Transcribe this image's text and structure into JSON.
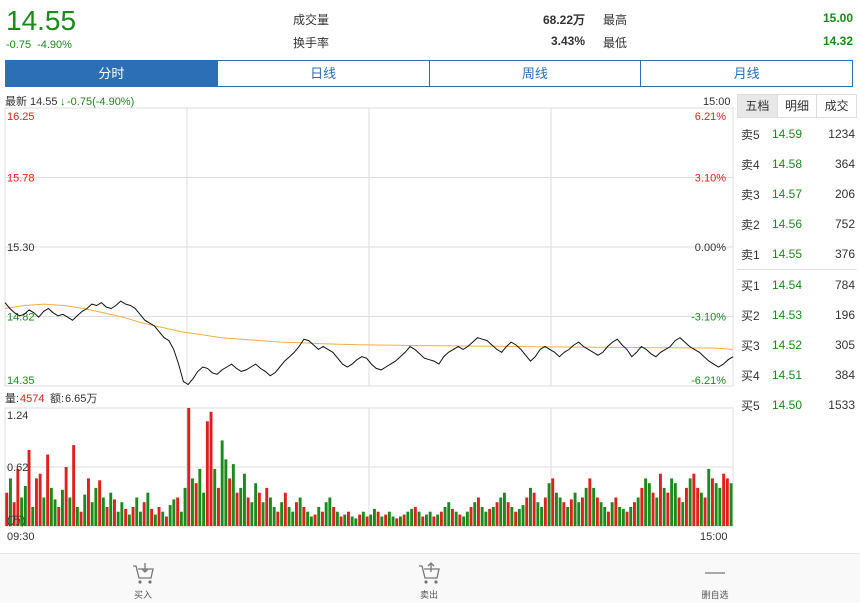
{
  "quote": {
    "price": "14.55",
    "change": "-0.75",
    "change_pct": "-4.90%",
    "volume_label": "成交量",
    "volume_value": "68.22万",
    "turnover_label": "换手率",
    "turnover_value": "3.43%",
    "high_label": "最高",
    "high_value": "15.00",
    "low_label": "最低",
    "low_value": "14.32"
  },
  "tabs": [
    "分时",
    "日线",
    "周线",
    "月线"
  ],
  "active_tab": 0,
  "chart_info": {
    "latest_label": "最新",
    "latest_value": "14.55",
    "latest_change": "-0.75(-4.90%)",
    "arrow": "↓",
    "time_end_top": "15:00",
    "volume_label": "量:",
    "volume_value": "4574",
    "amount_label": "额:",
    "amount_value": "6.65万",
    "time_start": "09:30",
    "time_end": "15:00"
  },
  "chart_data": {
    "type": "line",
    "price_axis": [
      "16.25",
      "15.78",
      "15.30",
      "14.82",
      "14.35"
    ],
    "pct_axis": [
      "6.21%",
      "3.10%",
      "0.00%",
      "-3.10%",
      "-6.21%"
    ],
    "ylim": [
      14.35,
      16.25
    ],
    "prev_close": 15.3,
    "price_series": [
      14.92,
      14.88,
      14.85,
      14.83,
      14.84,
      14.87,
      14.85,
      14.82,
      14.86,
      14.88,
      14.85,
      14.83,
      14.84,
      14.82,
      14.8,
      14.83,
      14.86,
      14.88,
      14.91,
      14.9,
      14.92,
      14.89,
      14.88,
      14.9,
      14.93,
      14.91,
      14.9,
      14.88,
      14.84,
      14.8,
      14.78,
      14.76,
      14.72,
      14.68,
      14.66,
      14.6,
      14.5,
      14.38,
      14.36,
      14.4,
      14.45,
      14.48,
      14.47,
      14.44,
      14.43,
      14.46,
      14.48,
      14.5,
      14.47,
      14.45,
      14.46,
      14.48,
      14.5,
      14.47,
      14.45,
      14.42,
      14.44,
      14.48,
      14.52,
      14.55,
      14.58,
      14.62,
      14.67,
      14.66,
      14.63,
      14.6,
      14.62,
      14.6,
      14.58,
      14.54,
      14.5,
      14.48,
      14.5,
      14.53,
      14.55,
      14.54,
      14.5,
      14.47,
      14.46,
      14.48,
      14.5,
      14.52,
      14.55,
      14.58,
      14.62,
      14.6,
      14.57,
      14.54,
      14.53,
      14.52,
      14.5,
      14.55,
      14.58,
      14.6,
      14.62,
      14.6,
      14.62,
      14.65,
      14.68,
      14.67,
      14.66,
      14.63,
      14.6,
      14.58,
      14.62,
      14.65,
      14.63,
      14.6,
      14.56,
      14.52,
      14.55,
      14.6,
      14.62,
      14.6,
      14.58,
      14.55,
      14.58,
      14.6,
      14.63,
      14.65,
      14.62,
      14.6,
      14.58,
      14.56,
      14.58,
      14.62,
      14.65,
      14.67,
      14.63,
      14.6,
      14.55,
      14.58,
      14.62,
      14.6,
      14.57,
      14.55,
      14.58,
      14.6,
      14.62,
      14.66,
      14.68,
      14.65,
      14.62,
      14.6,
      14.58,
      14.55,
      14.52,
      14.5,
      14.48,
      14.5,
      14.53,
      14.55
    ],
    "avg_series": [
      14.88,
      14.9,
      14.91,
      14.9,
      14.88,
      14.85,
      14.82,
      14.78,
      14.75,
      14.72,
      14.7,
      14.68,
      14.67,
      14.66,
      14.65,
      14.645,
      14.64,
      14.636,
      14.632,
      14.63,
      14.628,
      14.626,
      14.625,
      14.624,
      14.623,
      14.622,
      14.62,
      14.618,
      14.617,
      14.616,
      14.615,
      14.614,
      14.613,
      14.612,
      14.611,
      14.61,
      14.61,
      14.6
    ],
    "volume_axis": [
      "1.24",
      "0.62",
      "(万)"
    ],
    "volume_max": 1.24,
    "volume_series": [
      0.35,
      0.5,
      0.25,
      0.6,
      0.3,
      0.42,
      0.8,
      0.2,
      0.5,
      0.55,
      0.3,
      0.75,
      0.4,
      0.28,
      0.2,
      0.38,
      0.62,
      0.3,
      0.85,
      0.2,
      0.15,
      0.33,
      0.5,
      0.25,
      0.4,
      0.48,
      0.3,
      0.2,
      0.35,
      0.28,
      0.15,
      0.25,
      0.18,
      0.12,
      0.2,
      0.3,
      0.15,
      0.25,
      0.35,
      0.18,
      0.12,
      0.2,
      0.15,
      0.1,
      0.22,
      0.28,
      0.3,
      0.15,
      0.4,
      1.24,
      0.5,
      0.45,
      0.6,
      0.35,
      1.1,
      1.2,
      0.6,
      0.4,
      0.9,
      0.7,
      0.5,
      0.65,
      0.35,
      0.4,
      0.55,
      0.3,
      0.25,
      0.45,
      0.35,
      0.25,
      0.4,
      0.3,
      0.2,
      0.15,
      0.25,
      0.35,
      0.2,
      0.15,
      0.25,
      0.3,
      0.2,
      0.15,
      0.1,
      0.12,
      0.2,
      0.15,
      0.25,
      0.3,
      0.2,
      0.15,
      0.1,
      0.12,
      0.15,
      0.1,
      0.08,
      0.12,
      0.15,
      0.1,
      0.12,
      0.18,
      0.15,
      0.1,
      0.12,
      0.15,
      0.1,
      0.08,
      0.1,
      0.12,
      0.15,
      0.18,
      0.2,
      0.15,
      0.1,
      0.12,
      0.15,
      0.1,
      0.12,
      0.15,
      0.2,
      0.25,
      0.18,
      0.15,
      0.12,
      0.1,
      0.15,
      0.2,
      0.25,
      0.3,
      0.2,
      0.15,
      0.18,
      0.2,
      0.25,
      0.3,
      0.35,
      0.25,
      0.2,
      0.15,
      0.18,
      0.22,
      0.3,
      0.4,
      0.35,
      0.25,
      0.2,
      0.3,
      0.45,
      0.5,
      0.35,
      0.3,
      0.25,
      0.2,
      0.28,
      0.35,
      0.25,
      0.3,
      0.4,
      0.5,
      0.4,
      0.3,
      0.25,
      0.2,
      0.15,
      0.25,
      0.3,
      0.2,
      0.18,
      0.15,
      0.2,
      0.25,
      0.3,
      0.4,
      0.5,
      0.45,
      0.35,
      0.3,
      0.55,
      0.4,
      0.35,
      0.5,
      0.45,
      0.3,
      0.25,
      0.4,
      0.5,
      0.55,
      0.4,
      0.35,
      0.3,
      0.6,
      0.5,
      0.45,
      0.4,
      0.55,
      0.5,
      0.45
    ],
    "volume_colors_up": [
      1,
      0,
      1,
      1,
      0,
      0,
      1,
      0,
      1,
      1,
      0,
      1,
      0,
      0,
      1,
      0,
      1,
      0,
      1,
      0,
      1,
      0,
      1,
      0,
      0,
      1,
      0,
      1,
      0,
      1,
      0,
      0,
      1,
      0,
      1,
      0,
      0,
      1,
      0,
      1,
      0,
      1,
      0,
      1,
      0,
      0,
      1,
      0,
      0,
      1,
      0,
      1,
      0,
      0,
      1,
      1,
      0,
      1,
      0,
      0,
      1,
      0,
      1,
      0,
      0,
      1,
      0,
      0,
      1,
      0,
      1,
      0,
      0,
      1,
      0,
      1,
      0,
      0,
      1,
      0,
      1,
      0,
      0,
      1,
      0,
      1,
      0,
      0,
      1,
      0,
      1,
      0,
      1,
      0,
      0,
      1,
      0,
      1,
      0,
      0,
      1,
      0,
      1,
      0,
      0,
      1,
      0,
      1,
      0,
      0,
      1,
      0,
      1,
      0,
      0,
      1,
      0,
      1,
      0,
      0,
      1,
      0,
      1,
      0,
      0,
      1,
      0,
      1,
      0,
      0,
      1,
      0,
      1,
      0,
      0,
      1,
      0,
      1,
      0,
      0,
      1,
      0,
      1,
      0,
      0,
      1,
      0,
      1,
      0,
      0,
      1,
      0,
      1,
      0,
      0,
      1,
      0,
      1,
      0,
      1,
      0,
      0,
      1,
      0,
      1,
      0,
      0,
      1,
      0,
      1,
      0,
      1,
      0,
      0,
      1,
      0,
      1,
      0,
      1,
      0,
      0,
      1,
      0,
      1,
      0,
      1,
      1,
      0,
      1,
      0,
      1,
      0,
      0,
      1,
      1,
      0,
      1,
      0,
      1
    ]
  },
  "side_tabs": [
    "五档",
    "明细",
    "成交"
  ],
  "orderbook": {
    "asks": [
      {
        "label": "卖5",
        "price": "14.59",
        "vol": "1234"
      },
      {
        "label": "卖4",
        "price": "14.58",
        "vol": "364"
      },
      {
        "label": "卖3",
        "price": "14.57",
        "vol": "206"
      },
      {
        "label": "卖2",
        "price": "14.56",
        "vol": "752"
      },
      {
        "label": "卖1",
        "price": "14.55",
        "vol": "376"
      }
    ],
    "bids": [
      {
        "label": "买1",
        "price": "14.54",
        "vol": "784"
      },
      {
        "label": "买2",
        "price": "14.53",
        "vol": "196"
      },
      {
        "label": "买3",
        "price": "14.52",
        "vol": "305"
      },
      {
        "label": "买4",
        "price": "14.51",
        "vol": "384"
      },
      {
        "label": "买5",
        "price": "14.50",
        "vol": "1533"
      }
    ]
  },
  "bottom": {
    "buy": "买入",
    "sell": "卖出",
    "remove": "删自选"
  },
  "colors": {
    "up": "#e0201c",
    "down": "#1a8a1a",
    "accent": "#2c6fb6",
    "avg": "#f0b040",
    "grid": "#dddddd"
  }
}
